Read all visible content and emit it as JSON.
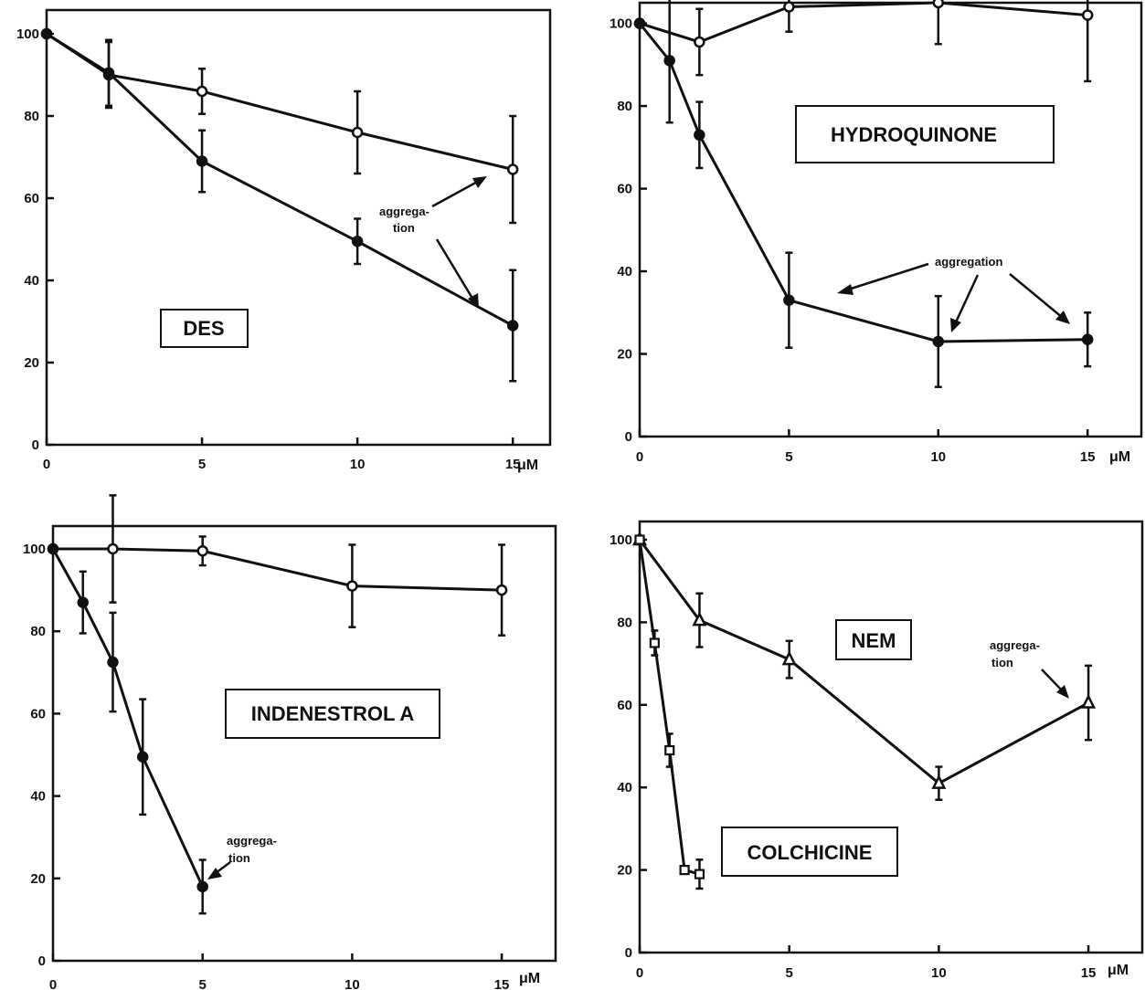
{
  "chart_data": [
    {
      "type": "line",
      "title": "DES",
      "x_unit": "μM",
      "xlim": [
        0,
        16.2
      ],
      "ylim": [
        0,
        100
      ],
      "xticks": [
        0,
        5,
        10,
        15
      ],
      "yticks": [
        0,
        20,
        40,
        60,
        80,
        100
      ],
      "annotation": [
        "aggrega-",
        "tion"
      ],
      "series": [
        {
          "marker": "open-circle",
          "x": [
            0,
            2,
            5,
            10,
            15
          ],
          "y": [
            100,
            90,
            86,
            76,
            67
          ],
          "err": [
            0,
            8,
            5.5,
            10,
            13
          ]
        },
        {
          "marker": "filled-circle",
          "x": [
            0,
            2,
            5,
            10,
            15
          ],
          "y": [
            100,
            90.5,
            69,
            49.5,
            29
          ],
          "err": [
            0,
            8,
            7.5,
            5.5,
            13.5
          ]
        }
      ]
    },
    {
      "type": "line",
      "title": "HYDROQUINONE",
      "x_unit": "μM",
      "xlim": [
        0,
        16.8
      ],
      "ylim": [
        0,
        105
      ],
      "xticks": [
        0,
        5,
        10,
        15
      ],
      "yticks": [
        0,
        20,
        40,
        60,
        80,
        100
      ],
      "annotation": [
        "aggregation"
      ],
      "series": [
        {
          "marker": "open-circle",
          "x": [
            0,
            2,
            5,
            10,
            15
          ],
          "y": [
            100,
            95.5,
            104,
            105,
            102
          ],
          "err": [
            0,
            8,
            6,
            10,
            16
          ]
        },
        {
          "marker": "filled-circle",
          "x": [
            0,
            1,
            2,
            5,
            10,
            15
          ],
          "y": [
            100,
            91,
            73,
            33,
            23,
            23.5
          ],
          "err": [
            0,
            15,
            8,
            11.5,
            11,
            6.5
          ]
        }
      ]
    },
    {
      "type": "line",
      "title": "INDENESTROL A",
      "x_unit": "μM",
      "xlim": [
        0,
        16.8
      ],
      "ylim": [
        0,
        100
      ],
      "xticks": [
        0,
        5,
        10,
        15
      ],
      "yticks": [
        0,
        20,
        40,
        60,
        80,
        100
      ],
      "annotation": [
        "aggrega-",
        "tion"
      ],
      "series": [
        {
          "marker": "open-circle",
          "x": [
            0,
            2,
            5,
            10,
            15
          ],
          "y": [
            100,
            100,
            99.5,
            91,
            90
          ],
          "err": [
            0,
            13,
            3.5,
            10,
            11
          ]
        },
        {
          "marker": "filled-circle",
          "x": [
            0,
            1,
            2,
            3,
            5
          ],
          "y": [
            100,
            87,
            72.5,
            49.5,
            18
          ],
          "err": [
            0,
            7.5,
            12,
            14,
            6.5
          ]
        }
      ]
    },
    {
      "type": "line",
      "titles": [
        "NEM",
        "COLCHICINE"
      ],
      "x_unit": "μM",
      "xlim": [
        0,
        16.8
      ],
      "ylim": [
        0,
        100
      ],
      "xticks": [
        0,
        5,
        10,
        15
      ],
      "yticks": [
        0,
        20,
        40,
        60,
        80,
        100
      ],
      "annotation": [
        "aggrega-",
        "tion"
      ],
      "series": [
        {
          "marker": "open-triangle",
          "x": [
            0,
            2,
            5,
            10,
            15
          ],
          "y": [
            100,
            80.5,
            71,
            41,
            60.5
          ],
          "err": [
            0,
            6.5,
            4.5,
            4,
            9
          ]
        },
        {
          "marker": "open-square",
          "x": [
            0,
            0.5,
            1,
            1.5,
            2
          ],
          "y": [
            100,
            75,
            49,
            20,
            19
          ],
          "err": [
            0,
            3,
            4,
            0,
            3.5
          ]
        }
      ]
    }
  ]
}
